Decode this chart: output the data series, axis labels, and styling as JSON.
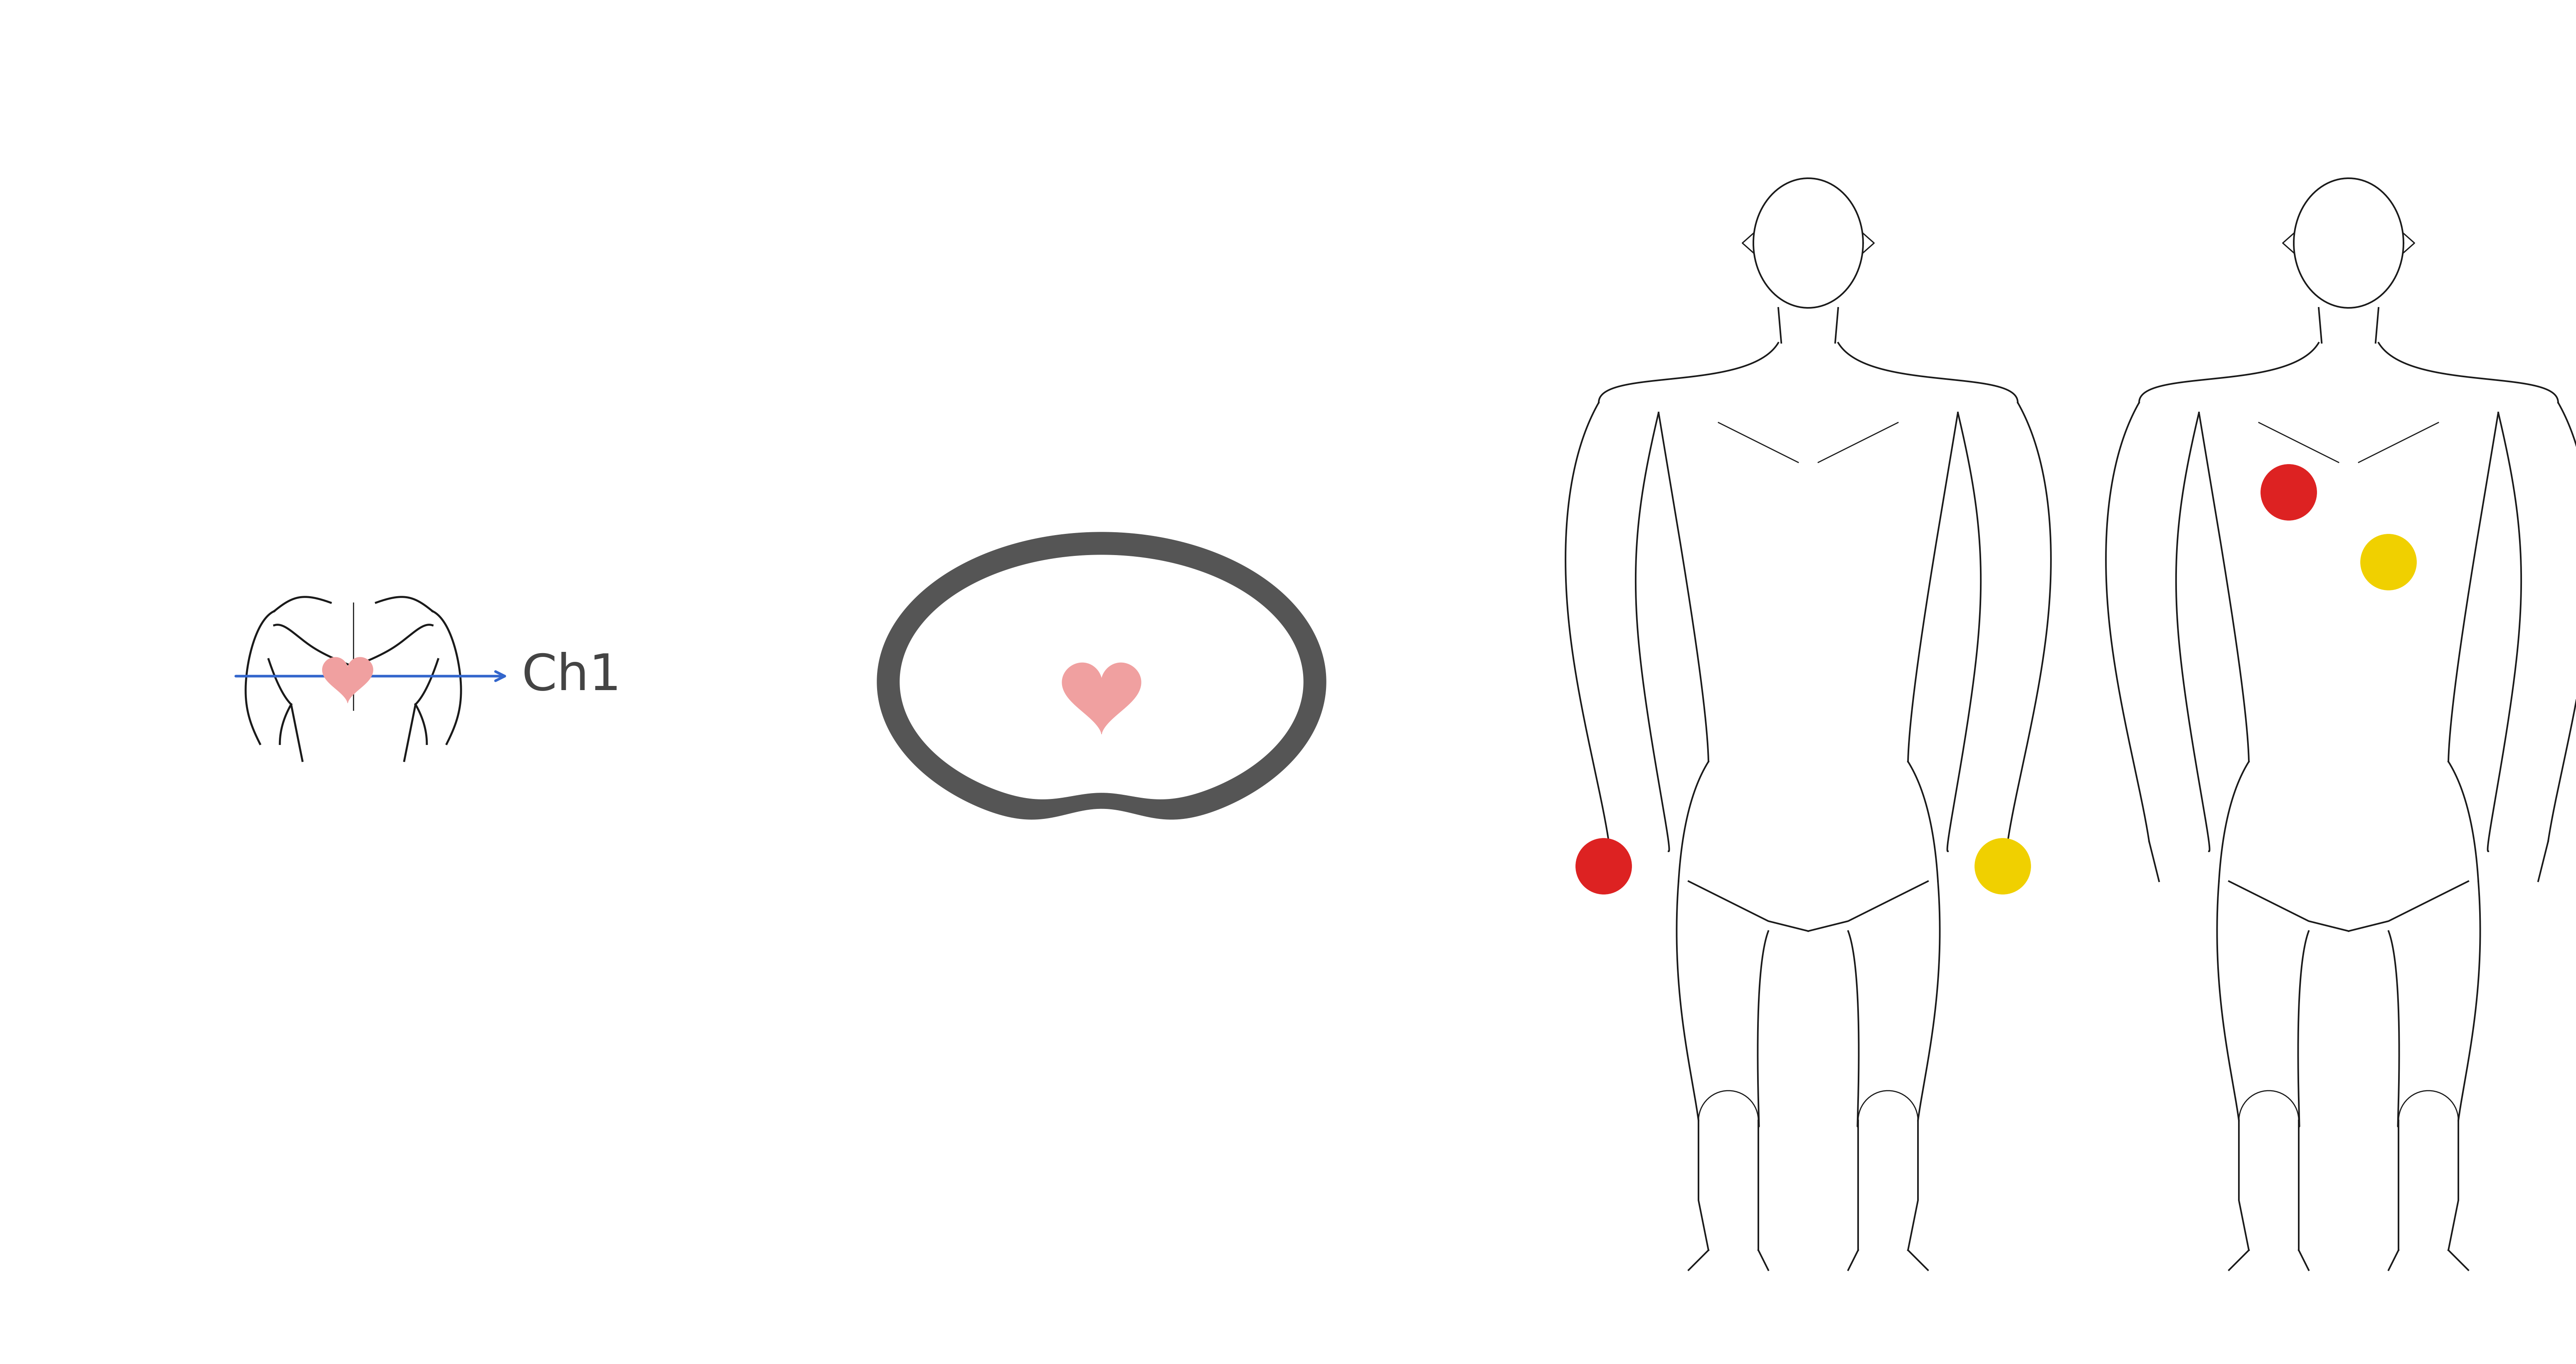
{
  "bg_color": "#ffffff",
  "line_color": "#1a1a1a",
  "heart_color": "#f0a0a0",
  "arrow_color": "#3366cc",
  "ch1_text": "Ch1",
  "red_dot_color": "#dd2222",
  "yellow_dot_color": "#f0d000",
  "cross_section_border": "#555555",
  "figsize": [
    61.97,
    32.83
  ],
  "dpi": 100,
  "lw_body": 2.8,
  "lw_chest": 3.5
}
